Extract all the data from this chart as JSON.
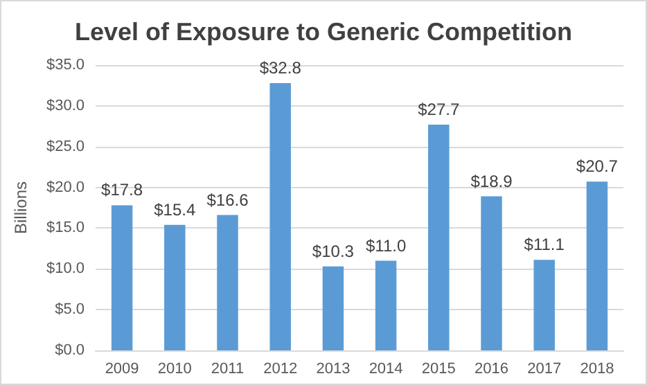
{
  "chart_data": {
    "type": "bar",
    "title": "Level of Exposure to Generic Competition",
    "ylabel": "Billions",
    "categories": [
      "2009",
      "2010",
      "2011",
      "2012",
      "2013",
      "2014",
      "2015",
      "2016",
      "2017",
      "2018"
    ],
    "values": [
      17.8,
      15.4,
      16.6,
      32.8,
      10.3,
      11.0,
      27.7,
      18.9,
      11.1,
      20.7
    ],
    "value_labels": [
      "$17.8",
      "$15.4",
      "$16.6",
      "$32.8",
      "$10.3",
      "$11.0",
      "$27.7",
      "$18.9",
      "$11.1",
      "$20.7"
    ],
    "color": "#5b9bd5",
    "ylim": [
      0,
      35
    ],
    "yticks": [
      {
        "value": 0,
        "label": "$0.0"
      },
      {
        "value": 5,
        "label": "$5.0"
      },
      {
        "value": 10,
        "label": "$10.0"
      },
      {
        "value": 15,
        "label": "$15.0"
      },
      {
        "value": 20,
        "label": "$20.0"
      },
      {
        "value": 25,
        "label": "$25.0"
      },
      {
        "value": 30,
        "label": "$30.0"
      },
      {
        "value": 35,
        "label": "$35.0"
      }
    ],
    "grid": "y"
  }
}
